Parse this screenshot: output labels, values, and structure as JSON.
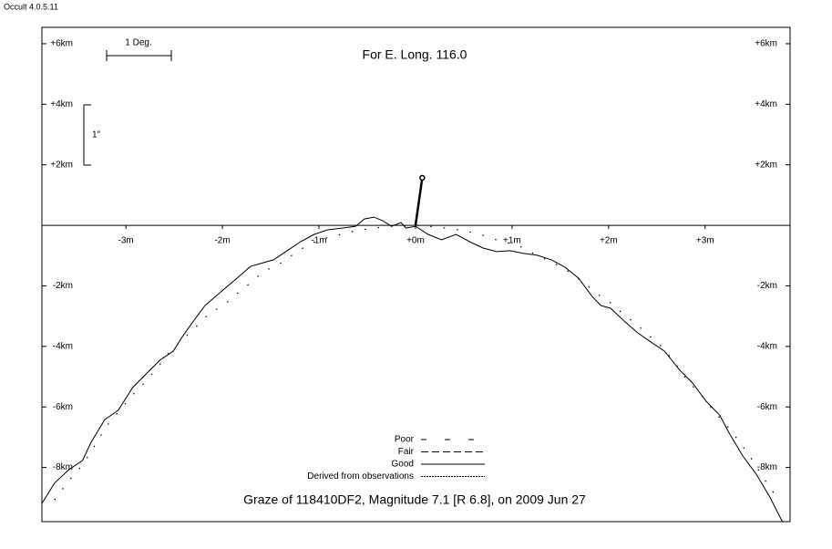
{
  "app_label": "Occult 4.0.5.11",
  "chart_data": {
    "type": "line",
    "title": "For E. Long. 116.0",
    "subtitle": "Graze of  118410DF2,  Magnitude 7.1 [R 6.8],  on 2009 Jun 27",
    "scale_labels": {
      "degree": "1 Deg.",
      "arcsec": "1\""
    },
    "xlim": [
      -3.87,
      3.88
    ],
    "ylim": [
      -9.79,
      6.54
    ],
    "xticks": [
      {
        "value": -3,
        "label": "-3m"
      },
      {
        "value": -2,
        "label": "-2m"
      },
      {
        "value": -1,
        "label": "-1m"
      },
      {
        "value": 0,
        "label": "+0m"
      },
      {
        "value": 1,
        "label": "+1m"
      },
      {
        "value": 2,
        "label": "+2m"
      },
      {
        "value": 3,
        "label": "+3m"
      }
    ],
    "yticks": [
      {
        "value": 6,
        "label": "+6km"
      },
      {
        "value": 4,
        "label": "+4km"
      },
      {
        "value": 2,
        "label": "+2km"
      },
      {
        "value": -2,
        "label": "-2km"
      },
      {
        "value": -4,
        "label": "-4km"
      },
      {
        "value": -6,
        "label": "-6km"
      },
      {
        "value": -8,
        "label": "-8km"
      }
    ],
    "series": [
      {
        "color": "#000000",
        "style": "solid",
        "x": [
          -3.87,
          -3.74,
          -3.59,
          -3.45,
          -3.36,
          -3.22,
          -3.08,
          -2.93,
          -2.79,
          -2.65,
          -2.51,
          -2.42,
          -2.32,
          -2.18,
          -2.04,
          -1.85,
          -1.71,
          -1.57,
          -1.47,
          -1.33,
          -1.19,
          -1.05,
          -0.91,
          -0.76,
          -0.62,
          -0.53,
          -0.43,
          -0.34,
          -0.25,
          -0.15,
          -0.1,
          0,
          0.13,
          0.27,
          0.42,
          0.56,
          0.7,
          0.84,
          0.98,
          1.12,
          1.26,
          1.41,
          1.55,
          1.69,
          1.83,
          1.92,
          2.02,
          2.16,
          2.3,
          2.44,
          2.58,
          2.73,
          2.87,
          3.01,
          3.15,
          3.25,
          3.39,
          3.53,
          3.67,
          3.8
        ],
        "values": [
          -9.19,
          -8.52,
          -8.07,
          -7.77,
          -7.17,
          -6.42,
          -6.11,
          -5.36,
          -4.91,
          -4.46,
          -4.16,
          -3.7,
          -3.25,
          -2.65,
          -2.26,
          -1.75,
          -1.36,
          -1.23,
          -1.14,
          -0.84,
          -0.54,
          -0.3,
          -0.15,
          -0.09,
          -0.03,
          0.21,
          0.27,
          0.15,
          -0.03,
          0.09,
          -0.09,
          -0.03,
          -0.3,
          -0.48,
          -0.3,
          -0.54,
          -0.75,
          -0.87,
          -0.84,
          -0.93,
          -0.99,
          -1.14,
          -1.39,
          -1.75,
          -2.35,
          -2.65,
          -2.74,
          -3.16,
          -3.55,
          -3.86,
          -4.16,
          -4.76,
          -5.21,
          -5.81,
          -6.27,
          -6.87,
          -7.62,
          -8.22,
          -8.98,
          -9.79
        ]
      },
      {
        "color": "#000000",
        "style": "dots",
        "x": [
          -3.74,
          -3.59,
          -3.45,
          -3.36,
          -3.2,
          -3.08,
          -2.93,
          -2.79,
          -2.65,
          -2.54,
          -2.42,
          -2.27,
          -2.13,
          -1.99,
          -1.85,
          -1.71,
          -1.57,
          -1.42,
          -1.28,
          -1.14,
          -1.0,
          -0.81,
          -0.62,
          -0.43,
          -0.25,
          0.04,
          0.32,
          0.51,
          0.7,
          0.84,
          1.08,
          1.22,
          1.36,
          1.5,
          1.62,
          1.74,
          1.88,
          2.02,
          2.16,
          2.3,
          2.44,
          2.58,
          2.7,
          2.82,
          2.96,
          3.1,
          3.25,
          3.36,
          3.48,
          3.62,
          3.76
        ],
        "values": [
          -9.07,
          -8.43,
          -7.92,
          -7.47,
          -6.63,
          -6.17,
          -5.6,
          -5.15,
          -4.61,
          -4.16,
          -3.8,
          -3.34,
          -2.89,
          -2.65,
          -2.26,
          -1.9,
          -1.51,
          -1.3,
          -0.99,
          -0.69,
          -0.48,
          -0.33,
          -0.18,
          -0.09,
          -0.03,
          0,
          -0.09,
          -0.18,
          -0.33,
          -0.48,
          -0.69,
          -0.93,
          -1.14,
          -1.36,
          -1.6,
          -1.9,
          -2.26,
          -2.56,
          -2.95,
          -3.31,
          -3.7,
          -4.1,
          -4.61,
          -5.15,
          -5.6,
          -6.17,
          -6.72,
          -7.17,
          -7.71,
          -8.43,
          -9.07
        ]
      }
    ],
    "star": {
      "x": 0.07,
      "y": 1.57
    },
    "legend": [
      {
        "name": "Poor",
        "dash": "6,20"
      },
      {
        "name": "Fair",
        "dash": "8,4"
      },
      {
        "name": "Good",
        "dash": "none"
      },
      {
        "name": "Derived from observations",
        "dash": "2,1"
      }
    ]
  }
}
